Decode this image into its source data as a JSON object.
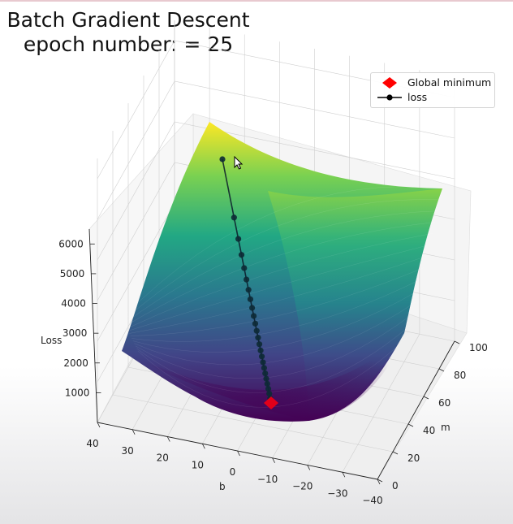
{
  "title": {
    "line1": "Batch Gradient Descent",
    "line2": "epoch number: = 25"
  },
  "legend": {
    "items": [
      {
        "label": "Global minimum",
        "marker": "diamond",
        "color": "#ff0000"
      },
      {
        "label": "loss",
        "marker": "line-dot",
        "color": "#000000"
      }
    ]
  },
  "chart_data": {
    "type": "surface3d",
    "title": "Batch Gradient Descent epoch number: = 25",
    "colormap": "viridis",
    "xlabel": "b",
    "ylabel": "m",
    "zlabel": "Loss",
    "xlim": [
      -40,
      40
    ],
    "ylim": [
      0,
      100
    ],
    "zlim": [
      0,
      6500
    ],
    "b_ticks": [
      "40",
      "30",
      "20",
      "10",
      "0",
      "−10",
      "−20",
      "−30",
      "−40"
    ],
    "m_ticks": [
      "0",
      "20",
      "40",
      "60",
      "80",
      "100"
    ],
    "loss_ticks": [
      "1000",
      "2000",
      "3000",
      "4000",
      "5000",
      "6000"
    ],
    "global_minimum": {
      "b": -5,
      "m": 50,
      "loss": 100
    },
    "loss_path": {
      "b": [
        38,
        32,
        26,
        20,
        15,
        11,
        8,
        6,
        4,
        2.5,
        1.5,
        0.5,
        -0.5,
        -1.5,
        -2.2,
        -2.8,
        -3.2,
        -3.6,
        -3.9,
        -4.1,
        -4.3,
        -4.5,
        -4.6,
        -4.7,
        -4.8
      ],
      "m": [
        8,
        13,
        18,
        23,
        28,
        32,
        35,
        37.5,
        39.5,
        41,
        42.5,
        43.5,
        44.5,
        45.3,
        46,
        46.6,
        47.1,
        47.5,
        47.9,
        48.2,
        48.5,
        48.8,
        49,
        49.2,
        49.4
      ],
      "loss": [
        6100,
        4500,
        3300,
        2450,
        1800,
        1350,
        1050,
        820,
        650,
        520,
        430,
        360,
        310,
        270,
        240,
        215,
        195,
        180,
        168,
        158,
        150,
        143,
        137,
        132,
        128
      ]
    },
    "grid": true,
    "legend_position": "upper-right"
  }
}
